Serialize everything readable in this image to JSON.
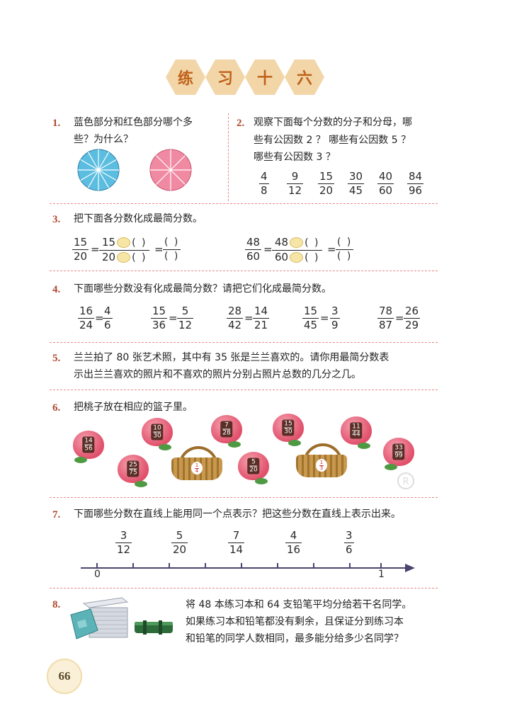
{
  "title_chars": [
    "练",
    "习",
    "十",
    "六"
  ],
  "q1": {
    "num": "1.",
    "text_line1": "蓝色部分和红色部分哪个多",
    "text_line2": "些？为什么？"
  },
  "q2": {
    "num": "2.",
    "line1": "观察下面每个分数的分子和分母，哪",
    "line2": "些有公因数 2 ？ 哪些有公因数 5 ？",
    "line3": "哪些有公因数 3 ？",
    "fractions": [
      {
        "n": "4",
        "d": "8"
      },
      {
        "n": "9",
        "d": "12"
      },
      {
        "n": "15",
        "d": "20"
      },
      {
        "n": "30",
        "d": "45"
      },
      {
        "n": "40",
        "d": "60"
      },
      {
        "n": "84",
        "d": "96"
      }
    ]
  },
  "q3": {
    "num": "3.",
    "text": "把下面各分数化成最简分数。",
    "a": {
      "n": "15",
      "d": "20",
      "n2": "15",
      "d2": "20",
      "blank": "(   )"
    },
    "b": {
      "n": "48",
      "d": "60",
      "n2": "48",
      "d2": "60",
      "blank": "(   )"
    }
  },
  "q4": {
    "num": "4.",
    "text": "下面哪些分数没有化成最简分数？请把它们化成最简分数。",
    "pairs": [
      {
        "ln": "16",
        "ld": "24",
        "rn": "4",
        "rd": "6"
      },
      {
        "ln": "15",
        "ld": "36",
        "rn": "5",
        "rd": "12"
      },
      {
        "ln": "28",
        "ld": "42",
        "rn": "14",
        "rd": "21"
      },
      {
        "ln": "15",
        "ld": "45",
        "rn": "3",
        "rd": "9"
      },
      {
        "ln": "78",
        "ld": "87",
        "rn": "26",
        "rd": "29"
      }
    ]
  },
  "q5": {
    "num": "5.",
    "line1": "兰兰拍了 80 张艺术照，其中有 35 张是兰兰喜欢的。请你用最简分数表",
    "line2": "示出兰兰喜欢的照片和不喜欢的照片分别占照片总数的几分之几。"
  },
  "q6": {
    "num": "6.",
    "text": "把桃子放在相应的篮子里。",
    "peaches": [
      {
        "n": "14",
        "d": "56"
      },
      {
        "n": "10",
        "d": "30"
      },
      {
        "n": "7",
        "d": "28"
      },
      {
        "n": "15",
        "d": "30"
      },
      {
        "n": "11",
        "d": "44"
      },
      {
        "n": "25",
        "d": "75"
      },
      {
        "n": "5",
        "d": "20"
      },
      {
        "n": "33",
        "d": "99"
      }
    ],
    "baskets": [
      {
        "n": "1",
        "d": "4"
      },
      {
        "n": "1",
        "d": "3"
      }
    ]
  },
  "q7": {
    "num": "7.",
    "text": "下面哪些分数在直线上能用同一个点表示？把这些分数在直线上表示出来。",
    "fractions": [
      {
        "n": "3",
        "d": "12"
      },
      {
        "n": "5",
        "d": "20"
      },
      {
        "n": "7",
        "d": "14"
      },
      {
        "n": "4",
        "d": "16"
      },
      {
        "n": "3",
        "d": "6"
      }
    ],
    "axis": {
      "start": "0",
      "end": "1"
    }
  },
  "q8": {
    "num": "8.",
    "line1": "将 48 本练习本和 64 支铅笔平均分给若干名同学。",
    "line2": "如果练习本和铅笔都没有剩余，且保证分到练习本",
    "line3": "和铅笔的同学人数相同，最多能分给多少名同学？"
  },
  "page_number": "66",
  "colors": {
    "accent": "#b0472d",
    "hex_bg": "#f2d6a8",
    "dash": "#e88a8a",
    "blue": "#4fb5dc",
    "pink": "#ef86a0"
  }
}
